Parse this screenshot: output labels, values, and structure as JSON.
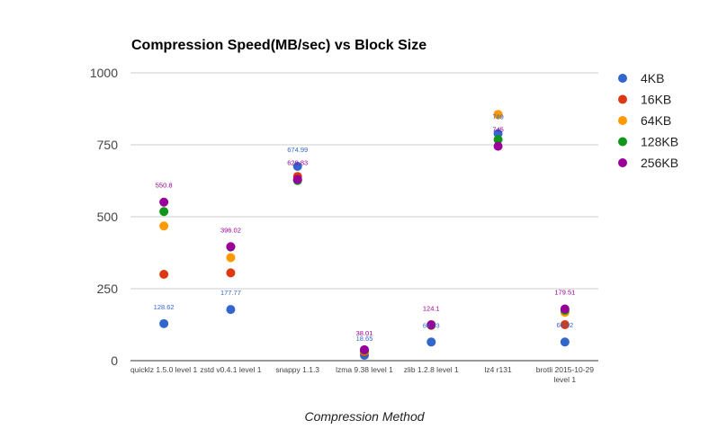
{
  "chart_data": {
    "type": "scatter",
    "title": "Compression Speed(MB/sec) vs Block Size",
    "xlabel": "Compression Method",
    "ylabel": "",
    "ylim": [
      0,
      1000
    ],
    "yticks": [
      "0",
      "250",
      "500",
      "750",
      "1000"
    ],
    "grid": true,
    "legend_position": "right",
    "categories": [
      [
        "quicklz 1.5.0 level 1"
      ],
      [
        "zstd v0.4.1 level 1"
      ],
      [
        "snappy 1.1.3"
      ],
      [
        "lzma 9.38 level 1"
      ],
      [
        "zlib 1.2.8 level 1"
      ],
      [
        "lz4 r131"
      ],
      [
        "brotli 2015-10-29",
        "level 1"
      ]
    ],
    "series": [
      {
        "name": "4KB",
        "color": "#3366cc",
        "values": [
          128.62,
          177.77,
          674.99,
          18.65,
          64.73,
          789,
          64.92
        ]
      },
      {
        "name": "16KB",
        "color": "#dc3912",
        "values": [
          300,
          305,
          640,
          30,
          125,
          855,
          125
        ]
      },
      {
        "name": "64KB",
        "color": "#ff9900",
        "values": [
          468,
          358,
          628,
          34,
          122,
          855,
          168
        ]
      },
      {
        "name": "128KB",
        "color": "#109618",
        "values": [
          518,
          395,
          626,
          36,
          124,
          768,
          175
        ]
      },
      {
        "name": "256KB",
        "color": "#990099",
        "values": [
          550.8,
          396.02,
          629.83,
          38.01,
          124.1,
          745,
          179.51
        ]
      }
    ],
    "data_labels": [
      {
        "category": 0,
        "value": 128.62,
        "text": "128.62",
        "color": "#3366cc"
      },
      {
        "category": 0,
        "value": 550.8,
        "text": "550.8",
        "color": "#990099"
      },
      {
        "category": 1,
        "value": 177.77,
        "text": "177.77",
        "color": "#3366cc"
      },
      {
        "category": 1,
        "value": 396.02,
        "text": "396.02",
        "color": "#990099"
      },
      {
        "category": 2,
        "value": 674.99,
        "text": "674.99",
        "color": "#3366cc"
      },
      {
        "category": 2,
        "value": 629.83,
        "text": "629.83",
        "color": "#990099"
      },
      {
        "category": 3,
        "value": 38.01,
        "text": "38.01",
        "color": "#990099"
      },
      {
        "category": 3,
        "value": 18.65,
        "text": "18.65",
        "color": "#3366cc"
      },
      {
        "category": 4,
        "value": 124.1,
        "text": "124.1",
        "color": "#990099"
      },
      {
        "category": 4,
        "value": 64.73,
        "text": "64.73",
        "color": "#3366cc"
      },
      {
        "category": 5,
        "value": 789,
        "text": "789",
        "color": "#3366cc"
      },
      {
        "category": 5,
        "value": 745,
        "text": "745",
        "color": "#990099"
      },
      {
        "category": 6,
        "value": 179.51,
        "text": "179.51",
        "color": "#990099"
      },
      {
        "category": 6,
        "value": 64.92,
        "text": "64.92",
        "color": "#3366cc"
      }
    ]
  }
}
